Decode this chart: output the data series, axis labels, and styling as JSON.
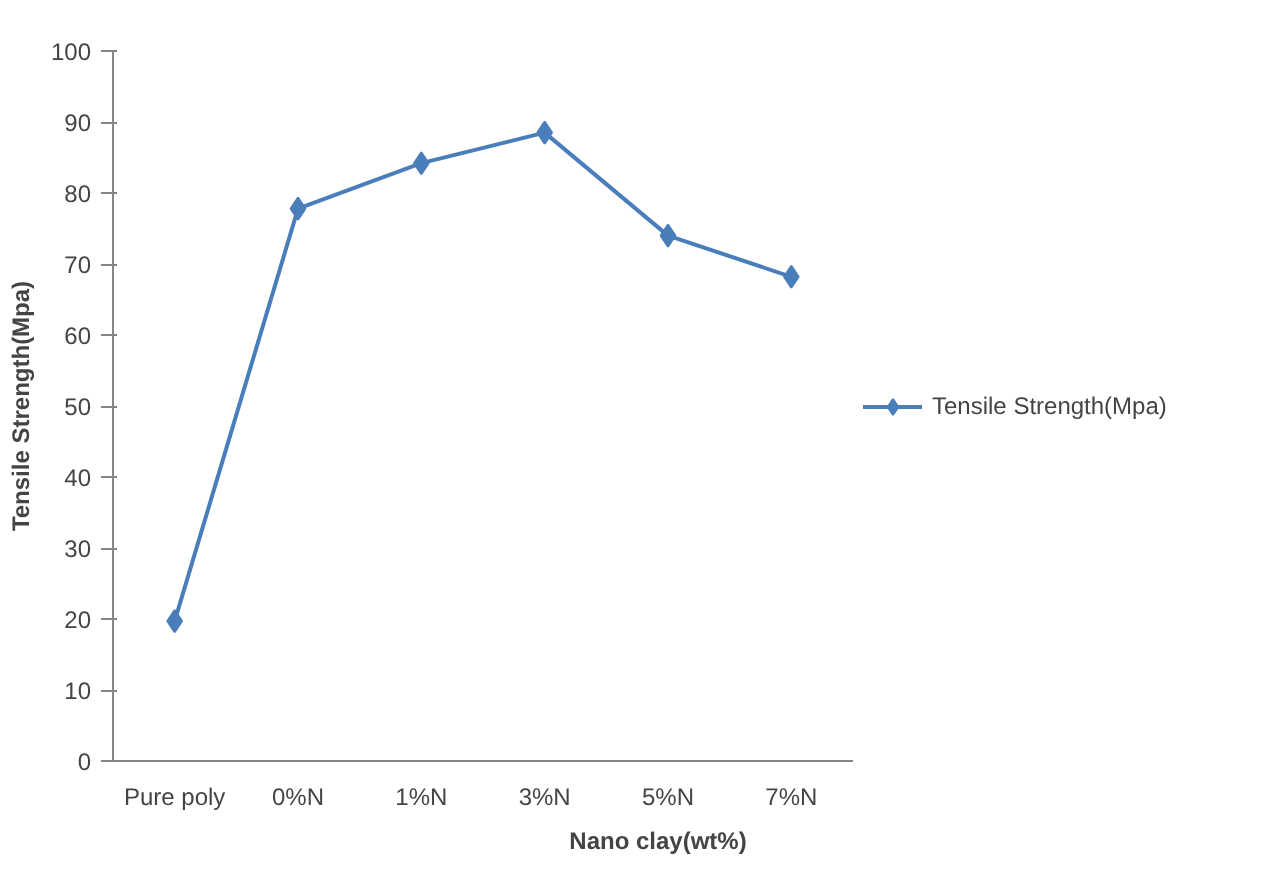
{
  "chart_data": {
    "type": "line",
    "xlabel": "Nano clay(wt%)",
    "ylabel": "Tensile Strength(Mpa)",
    "categories": [
      "Pure poly",
      "0%N",
      "1%N",
      "3%N",
      "5%N",
      "7%N"
    ],
    "series": [
      {
        "name": "Tensile Strength(Mpa)",
        "color": "#4a7ebb",
        "values": [
          19.7,
          77.8,
          84.2,
          88.5,
          74,
          68.2
        ]
      }
    ],
    "ylim": [
      0,
      100
    ],
    "yticks": [
      0,
      10,
      20,
      30,
      40,
      50,
      60,
      70,
      80,
      90,
      100
    ],
    "marker": "diamond",
    "line_style": "solid",
    "grid": false,
    "legend": "right"
  }
}
